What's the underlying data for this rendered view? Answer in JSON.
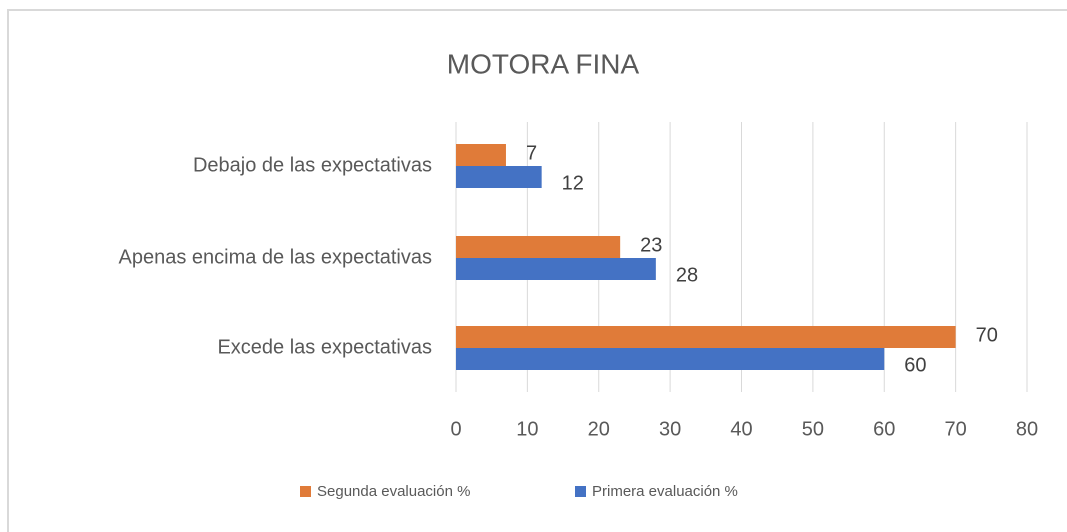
{
  "chart_data": {
    "type": "barh",
    "title": "MOTORA FINA",
    "categories": [
      "Debajo de las expectativas",
      "Apenas encima de las expectativas",
      "Excede las expectativas"
    ],
    "series": [
      {
        "name": "Segunda evaluación %",
        "color": "#e07b39",
        "values": [
          7,
          23,
          70
        ]
      },
      {
        "name": "Primera evaluación %",
        "color": "#4472c4",
        "values": [
          12,
          28,
          60
        ]
      }
    ],
    "xlim": [
      0,
      80
    ],
    "xticks": [
      0,
      10,
      20,
      30,
      40,
      50,
      60,
      70,
      80
    ],
    "grid": true,
    "legend": "bottom"
  }
}
